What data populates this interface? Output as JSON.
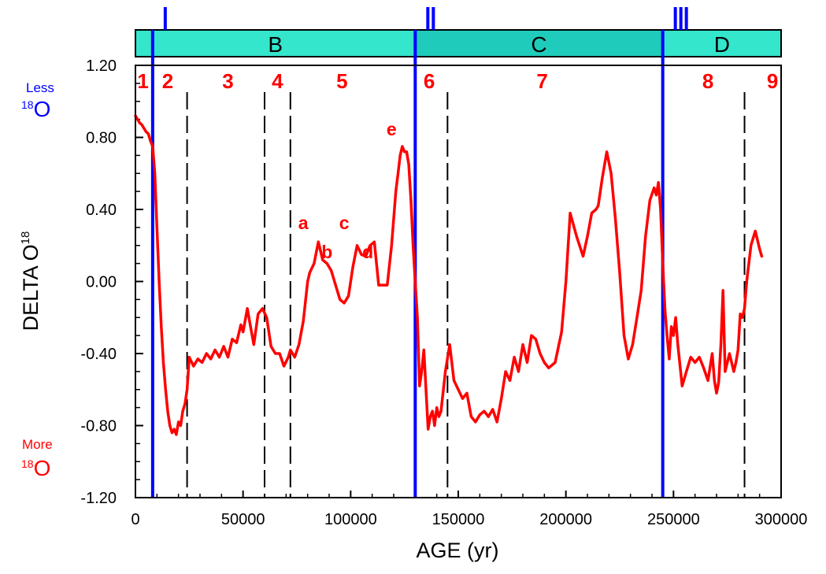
{
  "chart_data": {
    "type": "line",
    "xlabel": "AGE (yr)",
    "ylabel": "DELTA O",
    "ylabel_superscript": "18",
    "xlim": [
      0,
      300000
    ],
    "ylim": [
      -1.2,
      1.2
    ],
    "x_ticks": [
      0,
      50000,
      100000,
      150000,
      200000,
      250000,
      300000
    ],
    "x_tick_labels": [
      "0",
      "50000",
      "100000",
      "150000",
      "200000",
      "250000",
      "300000"
    ],
    "y_ticks": [
      1.2,
      0.8,
      0.4,
      0.0,
      -0.4,
      -0.8,
      -1.2
    ],
    "y_tick_labels": [
      "1.20",
      "0.80",
      "0.40",
      "0.00",
      "-0.40",
      "-0.80",
      "-1.20"
    ],
    "annotations": {
      "less": {
        "text": "Less",
        "isotope_mass": "18",
        "isotope_symbol": "O",
        "color": "#0000ff"
      },
      "more": {
        "text": "More",
        "isotope_mass": "18",
        "isotope_symbol": "O",
        "color": "#ff0000"
      }
    },
    "series": [
      {
        "color": "#ff0000",
        "x": [
          0,
          1000,
          2000,
          3000,
          4000,
          5000,
          6000,
          7000,
          8000,
          9000,
          10000,
          11000,
          12000,
          13000,
          14000,
          15000,
          16000,
          17000,
          18000,
          19000,
          20000,
          21000,
          22000,
          23000,
          24000,
          25000,
          27000,
          29000,
          31000,
          33000,
          35000,
          37000,
          39000,
          41000,
          43000,
          45000,
          47000,
          49000,
          50000,
          52000,
          53000,
          55000,
          57000,
          59000,
          61000,
          63000,
          65000,
          67000,
          69000,
          71000,
          72000,
          74000,
          76000,
          78000,
          80000,
          81000,
          83000,
          85000,
          87000,
          89000,
          91000,
          93000,
          95000,
          97000,
          99000,
          101000,
          103000,
          105000,
          107000,
          109000,
          111000,
          113000,
          115000,
          117000,
          119000,
          121000,
          122000,
          123000,
          124000,
          125000,
          126000,
          127000,
          128000,
          129000,
          130000,
          131000,
          132000,
          133000,
          134000,
          135000,
          136000,
          137000,
          138000,
          139000,
          140000,
          141000,
          142000,
          144000,
          146000,
          148000,
          150000,
          152000,
          154000,
          156000,
          158000,
          160000,
          162000,
          164000,
          166000,
          168000,
          170000,
          172000,
          174000,
          176000,
          178000,
          180000,
          182000,
          184000,
          186000,
          188000,
          190000,
          192000,
          195000,
          198000,
          200000,
          202000,
          205000,
          208000,
          210000,
          212000,
          214000,
          215000,
          217000,
          219000,
          221000,
          223000,
          225000,
          227000,
          229000,
          231000,
          233000,
          235000,
          237000,
          239000,
          241000,
          242000,
          243000,
          244000,
          245000,
          246000,
          247000,
          248000,
          249000,
          250000,
          251000,
          252000,
          254000,
          256000,
          258000,
          260000,
          262000,
          264000,
          266000,
          268000,
          269000,
          270000,
          271000,
          272000,
          273000,
          274000,
          276000,
          278000,
          279000,
          280000,
          281000,
          282000,
          283000,
          284000,
          286000,
          288000,
          290000,
          291000
        ],
        "y": [
          0.92,
          0.9,
          0.88,
          0.87,
          0.85,
          0.83,
          0.82,
          0.78,
          0.75,
          0.6,
          0.3,
          0.0,
          -0.25,
          -0.45,
          -0.6,
          -0.72,
          -0.8,
          -0.84,
          -0.82,
          -0.85,
          -0.78,
          -0.8,
          -0.72,
          -0.68,
          -0.6,
          -0.42,
          -0.47,
          -0.43,
          -0.45,
          -0.4,
          -0.43,
          -0.38,
          -0.42,
          -0.36,
          -0.42,
          -0.32,
          -0.34,
          -0.24,
          -0.28,
          -0.15,
          -0.22,
          -0.35,
          -0.18,
          -0.15,
          -0.2,
          -0.36,
          -0.4,
          -0.4,
          -0.47,
          -0.42,
          -0.38,
          -0.42,
          -0.35,
          -0.22,
          0.0,
          0.05,
          0.1,
          0.22,
          0.12,
          0.1,
          0.06,
          -0.02,
          -0.1,
          -0.12,
          -0.08,
          0.08,
          0.2,
          0.15,
          0.14,
          0.2,
          0.22,
          -0.02,
          -0.02,
          -0.02,
          0.2,
          0.5,
          0.6,
          0.7,
          0.75,
          0.72,
          0.72,
          0.65,
          0.45,
          0.2,
          0.0,
          -0.2,
          -0.58,
          -0.5,
          -0.38,
          -0.6,
          -0.82,
          -0.75,
          -0.72,
          -0.8,
          -0.7,
          -0.75,
          -0.72,
          -0.5,
          -0.35,
          -0.55,
          -0.6,
          -0.65,
          -0.62,
          -0.75,
          -0.78,
          -0.74,
          -0.72,
          -0.75,
          -0.71,
          -0.78,
          -0.65,
          -0.5,
          -0.55,
          -0.42,
          -0.5,
          -0.35,
          -0.45,
          -0.3,
          -0.32,
          -0.4,
          -0.45,
          -0.48,
          -0.45,
          -0.28,
          0.0,
          0.38,
          0.25,
          0.14,
          0.25,
          0.38,
          0.4,
          0.42,
          0.58,
          0.72,
          0.6,
          0.35,
          0.05,
          -0.3,
          -0.43,
          -0.35,
          -0.2,
          -0.05,
          0.25,
          0.45,
          0.52,
          0.48,
          0.55,
          0.4,
          0.1,
          -0.15,
          -0.3,
          -0.43,
          -0.25,
          -0.3,
          -0.2,
          -0.35,
          -0.58,
          -0.5,
          -0.42,
          -0.45,
          -0.42,
          -0.48,
          -0.55,
          -0.4,
          -0.55,
          -0.62,
          -0.56,
          -0.35,
          -0.05,
          -0.5,
          -0.4,
          -0.5,
          -0.45,
          -0.38,
          -0.18,
          -0.2,
          -0.15,
          0.0,
          0.2,
          0.28,
          0.18,
          0.14
        ]
      }
    ],
    "vertical_lines": {
      "blue": {
        "x": [
          8000,
          130000,
          245000
        ],
        "color": "#0000ff",
        "style": "solid"
      },
      "dashed": {
        "x": [
          24000,
          60000,
          72000,
          145000,
          283000
        ],
        "color": "#000000",
        "style": "dashed"
      }
    },
    "zones": [
      {
        "label": "1",
        "x": 3500
      },
      {
        "label": "2",
        "x": 15000
      },
      {
        "label": "3",
        "x": 43000
      },
      {
        "label": "4",
        "x": 66000
      },
      {
        "label": "5",
        "x": 96000
      },
      {
        "label": "6",
        "x": 136500
      },
      {
        "label": "7",
        "x": 189000
      },
      {
        "label": "8",
        "x": 266000
      },
      {
        "label": "9",
        "x": 296000
      }
    ],
    "peaks": [
      {
        "label": "a",
        "x": 78000,
        "y": 0.29
      },
      {
        "label": "b",
        "x": 89000,
        "y": 0.13
      },
      {
        "label": "c",
        "x": 97000,
        "y": 0.29
      },
      {
        "label": "d",
        "x": 108000,
        "y": 0.13
      },
      {
        "label": "e",
        "x": 119000,
        "y": 0.81
      }
    ],
    "bands": [
      {
        "label": "B",
        "x_start": 0,
        "x_end": 130000,
        "color": "#33e6cc"
      },
      {
        "label": "C",
        "x_start": 130000,
        "x_end": 245000,
        "color": "#1fccbb"
      },
      {
        "label": "D",
        "x_start": 245000,
        "x_end": 300000,
        "color": "#33e6cc"
      }
    ],
    "terminations": [
      {
        "label": "I",
        "x": 8000
      },
      {
        "label": "II",
        "x": 130000
      },
      {
        "label": "III",
        "x": 245000
      }
    ]
  }
}
